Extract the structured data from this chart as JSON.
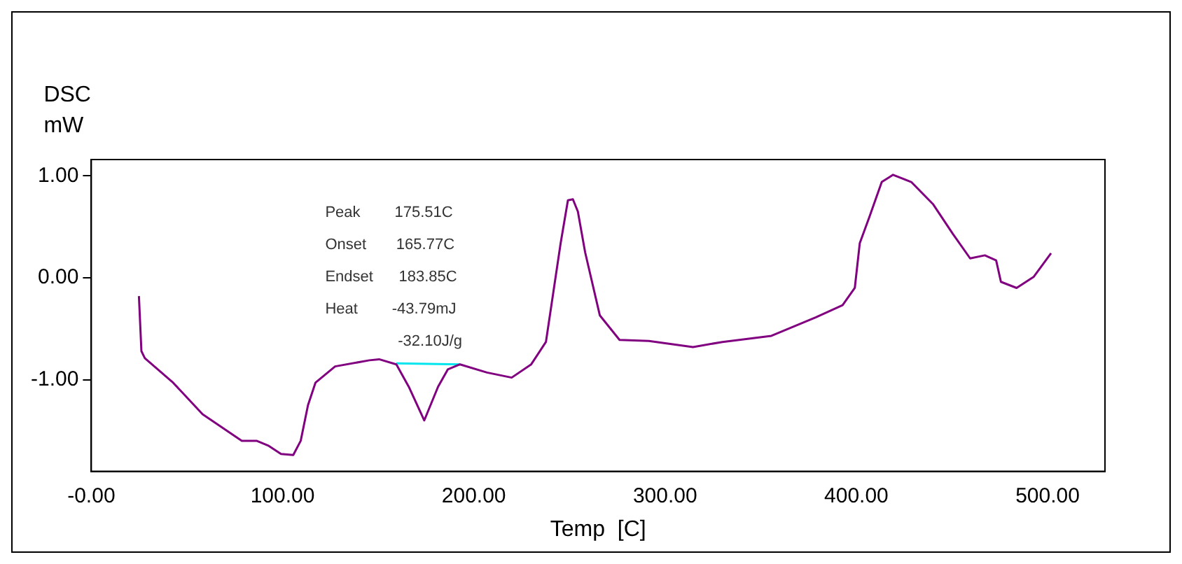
{
  "chart_data": {
    "type": "line",
    "xlabel": "Temp  [C]",
    "ylabel": "DSC\nmW",
    "xlim": [
      0,
      530
    ],
    "ylim": [
      -1.9,
      1.16
    ],
    "xticks": [
      {
        "value": 0,
        "label": "-0.00"
      },
      {
        "value": 100,
        "label": "100.00"
      },
      {
        "value": 200,
        "label": "200.00"
      },
      {
        "value": 300,
        "label": "300.00"
      },
      {
        "value": 400,
        "label": "400.00"
      },
      {
        "value": 500,
        "label": "500.00"
      }
    ],
    "yticks": [
      {
        "value": 1,
        "label": "1.00"
      },
      {
        "value": 0,
        "label": "0.00"
      },
      {
        "value": -1,
        "label": "-1.00"
      }
    ],
    "grid": false,
    "legend": false,
    "marker": "none",
    "line_style": "solid",
    "series": [
      {
        "color": "#800080",
        "x": [
          24.9,
          26.2,
          28,
          42.8,
          58.2,
          78.7,
          86.4,
          92.8,
          99.2,
          105.6,
          109.5,
          113.3,
          117.2,
          127.5,
          145.4,
          150.5,
          159.5,
          166,
          174.1,
          181.3,
          186.4,
          192.8,
          206.9,
          219.8,
          230,
          237.7,
          245.4,
          249.2,
          251.8,
          254.4,
          258.2,
          265.9,
          276.2,
          291.5,
          314.6,
          330,
          355.6,
          378.7,
          392.8,
          399.2,
          401.8,
          406.9,
          413.3,
          419.2,
          428.7,
          440.2,
          450.5,
          459.5,
          467.2,
          473.1,
          475.6,
          483.8,
          492.8,
          501.8
        ],
        "values": [
          -0.18,
          -0.72,
          -0.79,
          -1.03,
          -1.34,
          -1.6,
          -1.6,
          -1.65,
          -1.73,
          -1.74,
          -1.6,
          -1.25,
          -1.03,
          -0.87,
          -0.81,
          -0.8,
          -0.85,
          -1.07,
          -1.4,
          -1.07,
          -0.9,
          -0.85,
          -0.93,
          -0.98,
          -0.85,
          -0.63,
          0.34,
          0.76,
          0.77,
          0.65,
          0.25,
          -0.37,
          -0.61,
          -0.62,
          -0.68,
          -0.63,
          -0.57,
          -0.39,
          -0.27,
          -0.1,
          0.34,
          0.6,
          0.94,
          1.01,
          0.94,
          0.72,
          0.43,
          0.19,
          0.22,
          0.17,
          -0.04,
          -0.1,
          0.01,
          0.24
        ]
      },
      {
        "color": "#00e5ee",
        "x": [
          159.5,
          192.8
        ],
        "values": [
          -0.84,
          -0.85
        ]
      }
    ],
    "annotations": [
      "Peak        175.51C",
      "Onset       165.77C",
      "Endset      183.85C",
      "Heat        -43.79mJ",
      "                 -32.10J/g"
    ]
  }
}
